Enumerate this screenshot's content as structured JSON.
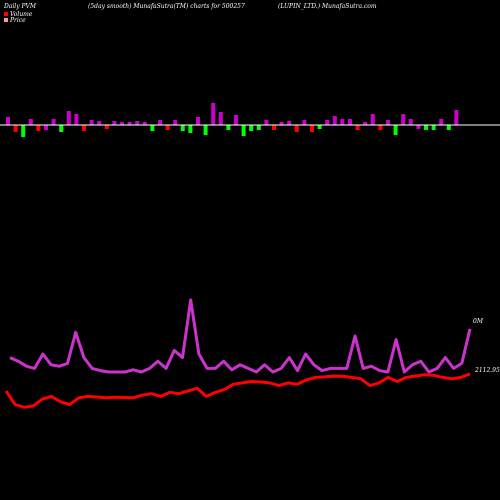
{
  "header": {
    "left": "Daily PVM",
    "center_left": "(5day smooth) MunafaSutra(TM) charts for 500257",
    "center_right": "(LUPIN_LTD.) MunafaSutra.com"
  },
  "legend": [
    {
      "label": "Volume",
      "color": "#ff0000"
    },
    {
      "label": "Price",
      "color": "#ff9999"
    }
  ],
  "colors": {
    "background": "#000000",
    "baseline": "#ffffff",
    "up_bar": "#cc00cc",
    "down_bar_red": "#ff0000",
    "down_bar_green": "#00ff00",
    "volume_line": "#cc33cc",
    "price_line": "#ff0000"
  },
  "chart_data": {
    "type": "line",
    "volume_label": "0M",
    "price_label": "2112.95",
    "bars": [
      {
        "h": 8,
        "c": "up"
      },
      {
        "h": -7,
        "c": "red"
      },
      {
        "h": -12,
        "c": "green"
      },
      {
        "h": 6,
        "c": "up"
      },
      {
        "h": -6,
        "c": "red"
      },
      {
        "h": -5,
        "c": "up"
      },
      {
        "h": 6,
        "c": "up"
      },
      {
        "h": -7,
        "c": "green"
      },
      {
        "h": 14,
        "c": "up"
      },
      {
        "h": 11,
        "c": "up"
      },
      {
        "h": -6,
        "c": "red"
      },
      {
        "h": 5,
        "c": "up"
      },
      {
        "h": 4,
        "c": "up"
      },
      {
        "h": -4,
        "c": "red"
      },
      {
        "h": 4,
        "c": "up"
      },
      {
        "h": 3,
        "c": "up"
      },
      {
        "h": 3,
        "c": "up"
      },
      {
        "h": 4,
        "c": "up"
      },
      {
        "h": 3,
        "c": "up"
      },
      {
        "h": -6,
        "c": "green"
      },
      {
        "h": 5,
        "c": "up"
      },
      {
        "h": -5,
        "c": "red"
      },
      {
        "h": 5,
        "c": "up"
      },
      {
        "h": -6,
        "c": "green"
      },
      {
        "h": -8,
        "c": "green"
      },
      {
        "h": 8,
        "c": "up"
      },
      {
        "h": -10,
        "c": "green"
      },
      {
        "h": 22,
        "c": "up"
      },
      {
        "h": 13,
        "c": "up"
      },
      {
        "h": -5,
        "c": "green"
      },
      {
        "h": 10,
        "c": "up"
      },
      {
        "h": -11,
        "c": "green"
      },
      {
        "h": -6,
        "c": "green"
      },
      {
        "h": -5,
        "c": "green"
      },
      {
        "h": 5,
        "c": "up"
      },
      {
        "h": -5,
        "c": "red"
      },
      {
        "h": 3,
        "c": "up"
      },
      {
        "h": 4,
        "c": "up"
      },
      {
        "h": -7,
        "c": "red"
      },
      {
        "h": 5,
        "c": "up"
      },
      {
        "h": -7,
        "c": "red"
      },
      {
        "h": -4,
        "c": "green"
      },
      {
        "h": 5,
        "c": "up"
      },
      {
        "h": 9,
        "c": "up"
      },
      {
        "h": 6,
        "c": "up"
      },
      {
        "h": 6,
        "c": "up"
      },
      {
        "h": -5,
        "c": "red"
      },
      {
        "h": 3,
        "c": "up"
      },
      {
        "h": 11,
        "c": "up"
      },
      {
        "h": -5,
        "c": "red"
      },
      {
        "h": 5,
        "c": "up"
      },
      {
        "h": -10,
        "c": "green"
      },
      {
        "h": 11,
        "c": "up"
      },
      {
        "h": 6,
        "c": "up"
      },
      {
        "h": -4,
        "c": "up"
      },
      {
        "h": -5,
        "c": "green"
      },
      {
        "h": -5,
        "c": "green"
      },
      {
        "h": 6,
        "c": "up"
      },
      {
        "h": -5,
        "c": "green"
      },
      {
        "h": 15,
        "c": "up"
      }
    ],
    "volume_series": [
      0.2,
      0.15,
      0.08,
      0.05,
      0.25,
      0.1,
      0.08,
      0.12,
      0.55,
      0.2,
      0.05,
      0.02,
      0.0,
      0.0,
      0.0,
      0.03,
      0.0,
      0.05,
      0.15,
      0.05,
      0.3,
      0.2,
      1.0,
      0.25,
      0.05,
      0.05,
      0.15,
      0.03,
      0.1,
      0.05,
      0.0,
      0.1,
      0.0,
      0.05,
      0.2,
      0.02,
      0.25,
      0.1,
      0.02,
      0.05,
      0.05,
      0.05,
      0.5,
      0.05,
      0.08,
      0.02,
      0.0,
      0.45,
      0.0,
      0.1,
      0.15,
      0.0,
      0.05,
      0.2,
      0.05,
      0.12,
      0.6
    ],
    "price_series": [
      2050,
      2000,
      1990,
      1995,
      2020,
      2030,
      2010,
      2000,
      2025,
      2030,
      2028,
      2025,
      2027,
      2026,
      2025,
      2035,
      2040,
      2030,
      2045,
      2040,
      2050,
      2060,
      2030,
      2045,
      2055,
      2075,
      2080,
      2085,
      2083,
      2080,
      2070,
      2080,
      2075,
      2090,
      2100,
      2102,
      2105,
      2104,
      2100,
      2095,
      2070,
      2080,
      2100,
      2085,
      2100,
      2105,
      2110,
      2108,
      2100,
      2095,
      2100,
      2112.95
    ]
  }
}
